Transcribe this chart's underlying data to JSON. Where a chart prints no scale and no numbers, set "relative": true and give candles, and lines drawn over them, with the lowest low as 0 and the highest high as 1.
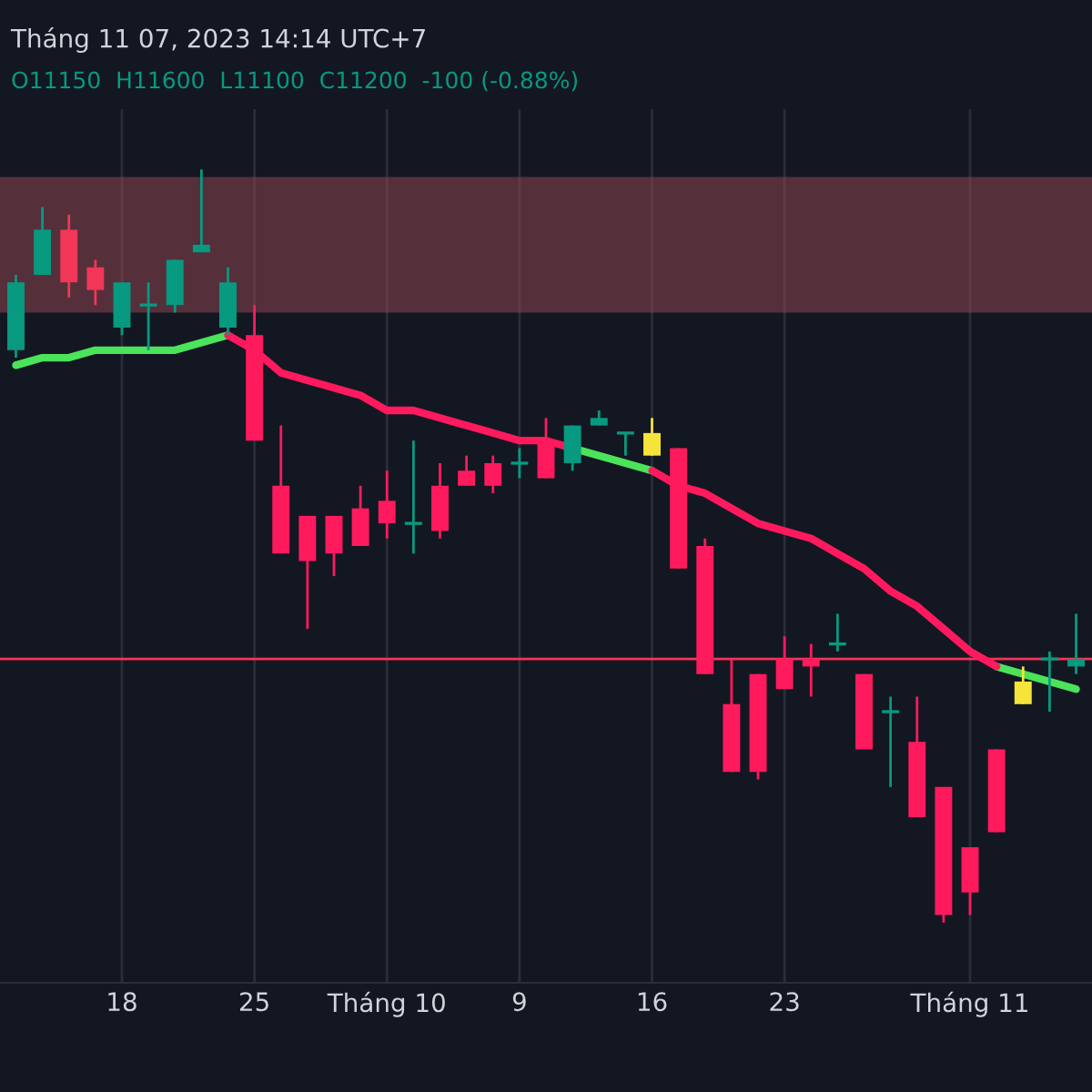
{
  "chart_data": {
    "type": "candlestick",
    "relative": true,
    "title": "Tháng 11 07, 2023 14:14 UTC+7",
    "subtitle": "O11150  H11600  L11100  C11200  -100 (-0.88%)",
    "categories": [
      null,
      null,
      null,
      null,
      "18",
      null,
      null,
      null,
      null,
      "25",
      null,
      null,
      null,
      null,
      "Tháng 10",
      null,
      null,
      null,
      null,
      "9",
      null,
      null,
      null,
      null,
      "16",
      null,
      null,
      null,
      null,
      "23",
      null,
      null,
      null,
      null,
      null,
      null,
      "Tháng 11",
      null,
      null,
      null,
      null
    ],
    "ohlc": [
      [
        0.76,
        0.86,
        0.75,
        0.85
      ],
      [
        0.86,
        0.95,
        0.86,
        0.92
      ],
      [
        0.92,
        0.94,
        0.83,
        0.85
      ],
      [
        0.87,
        0.88,
        0.82,
        0.84
      ],
      [
        0.79,
        0.85,
        0.78,
        0.85
      ],
      [
        0.82,
        0.85,
        0.76,
        0.82
      ],
      [
        0.82,
        0.88,
        0.81,
        0.88
      ],
      [
        0.89,
        1.0,
        0.89,
        0.9
      ],
      [
        0.79,
        0.87,
        0.78,
        0.85
      ],
      [
        0.78,
        0.82,
        0.64,
        0.64
      ],
      [
        0.58,
        0.66,
        0.49,
        0.49
      ],
      [
        0.54,
        0.54,
        0.39,
        0.48
      ],
      [
        0.54,
        0.54,
        0.46,
        0.49
      ],
      [
        0.55,
        0.58,
        0.5,
        0.5
      ],
      [
        0.56,
        0.6,
        0.51,
        0.53
      ],
      [
        0.53,
        0.64,
        0.49,
        0.53
      ],
      [
        0.58,
        0.61,
        0.51,
        0.52
      ],
      [
        0.6,
        0.62,
        0.58,
        0.58
      ],
      [
        0.61,
        0.62,
        0.57,
        0.58
      ],
      [
        0.61,
        0.63,
        0.59,
        0.61
      ],
      [
        0.64,
        0.67,
        0.59,
        0.59
      ],
      [
        0.61,
        0.66,
        0.6,
        0.66
      ],
      [
        0.66,
        0.68,
        0.66,
        0.67
      ],
      [
        0.65,
        0.65,
        0.62,
        0.65
      ],
      [
        0.62,
        0.67,
        0.62,
        0.65
      ],
      [
        0.63,
        0.63,
        0.47,
        0.47
      ],
      [
        0.5,
        0.51,
        0.33,
        0.33
      ],
      [
        0.29,
        0.35,
        0.2,
        0.2
      ],
      [
        0.33,
        0.33,
        0.19,
        0.2
      ],
      [
        0.35,
        0.38,
        0.31,
        0.31
      ],
      [
        0.35,
        0.37,
        0.3,
        0.34
      ],
      [
        0.37,
        0.41,
        0.36,
        0.37
      ],
      [
        0.33,
        0.33,
        0.23,
        0.23
      ],
      [
        0.28,
        0.3,
        0.18,
        0.28
      ],
      [
        0.24,
        0.3,
        0.14,
        0.14
      ],
      [
        0.18,
        0.18,
        0,
        0.01
      ],
      [
        0.1,
        0.1,
        0.01,
        0.04
      ],
      [
        0.23,
        0.23,
        0.12,
        0.12
      ],
      [
        0.29,
        0.34,
        0.29,
        0.32
      ],
      [
        0.35,
        0.36,
        0.28,
        0.35
      ],
      [
        0.34,
        0.41,
        0.33,
        0.35
      ]
    ],
    "colors": [
      "#089981",
      "#089981",
      "#f23658",
      "#f23658",
      "#089981",
      "#089981",
      "#089981",
      "#089981",
      "#089981",
      "#ff1a5e",
      "#ff1a5e",
      "#ff1a5e",
      "#ff1a5e",
      "#ff1a5e",
      "#ff1a5e",
      "#089981",
      "#ff1a5e",
      "#ff1a5e",
      "#ff1a5e",
      "#089981",
      "#ff1a5e",
      "#089981",
      "#089981",
      "#089981",
      "#f7e43b",
      "#ff1a5e",
      "#ff1a5e",
      "#ff1a5e",
      "#ff1a5e",
      "#ff1a5e",
      "#ff1a5e",
      "#089981",
      "#ff1a5e",
      "#089981",
      "#ff1a5e",
      "#ff1a5e",
      "#ff1a5e",
      "#ff1a5e",
      "#f7e43b",
      "#089981",
      "#089981"
    ],
    "series": [
      {
        "type": "line",
        "color": "#4be35a",
        "values": [
          0.74,
          0.75,
          0.75,
          0.76,
          0.76,
          0.76,
          0.76,
          0.77,
          0.78,
          null,
          null,
          null,
          null,
          null,
          null,
          null,
          null,
          null,
          null,
          null,
          null,
          0.63,
          0.62,
          0.61,
          0.6,
          null,
          null,
          null,
          null,
          null,
          null,
          null,
          null,
          null,
          null,
          null,
          null,
          0.34,
          0.33,
          0.32,
          0.31
        ]
      },
      {
        "type": "line",
        "color": "#ff1a5e",
        "values": [
          null,
          null,
          null,
          null,
          null,
          null,
          null,
          null,
          0.78,
          0.76,
          0.73,
          0.72,
          0.71,
          0.7,
          0.68,
          0.68,
          0.67,
          0.66,
          0.65,
          0.64,
          0.64,
          0.63,
          null,
          null,
          0.6,
          0.58,
          0.57,
          0.55,
          0.53,
          0.52,
          0.51,
          0.49,
          0.47,
          0.44,
          0.42,
          0.39,
          0.36,
          0.34,
          null,
          null,
          null
        ]
      }
    ],
    "bands": [
      {
        "axis": "y",
        "from": 0.81,
        "to": 0.99,
        "color": "#8c4650"
      }
    ],
    "ref_lines": [
      {
        "axis": "y",
        "value": 0.35,
        "color": "#f23658"
      }
    ],
    "grid": "x",
    "legend": false
  }
}
